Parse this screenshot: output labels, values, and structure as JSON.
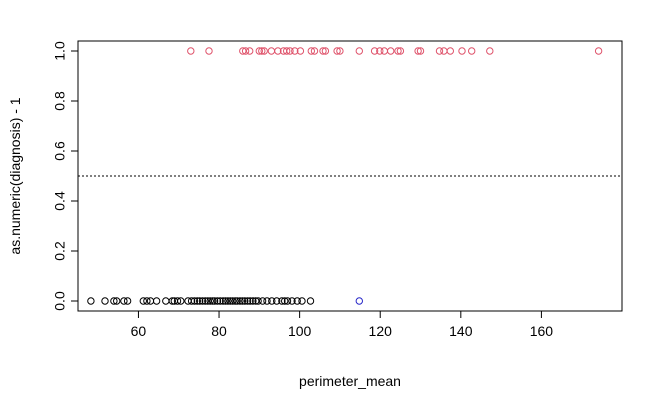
{
  "chart_data": {
    "type": "scatter",
    "xlabel": "perimeter_mean",
    "ylabel": "as.numeric(diagnosis) - 1",
    "xlim": [
      45,
      180
    ],
    "ylim": [
      -0.04,
      1.04
    ],
    "xticks": [
      60,
      80,
      100,
      120,
      140,
      160
    ],
    "yticks": [
      0.0,
      0.2,
      0.4,
      0.6,
      0.8,
      1.0
    ],
    "ytick_labels": [
      "0.0",
      "0.2",
      "0.4",
      "0.6",
      "0.8",
      "1.0"
    ],
    "reference_line": {
      "y": 0.5,
      "style": "dotted"
    },
    "grid": false,
    "legend": "none",
    "series": [
      {
        "y": 0,
        "color": "#000000",
        "x": [
          48.2,
          51.7,
          53.9,
          54.6,
          56.4,
          57.3,
          61.2,
          62.1,
          63.0,
          64.5,
          66.8,
          68.4,
          68.9,
          69.7,
          70.5,
          72.3,
          73.2,
          73.9,
          74.6,
          75.2,
          75.9,
          76.6,
          77.2,
          77.8,
          78.4,
          78.9,
          79.6,
          80.3,
          81.0,
          81.6,
          82.2,
          82.8,
          83.4,
          84.0,
          84.5,
          85.2,
          85.8,
          86.4,
          87.1,
          87.7,
          88.4,
          89.1,
          89.7,
          90.8,
          91.9,
          93.1,
          94.3,
          95.6,
          96.3,
          97.0,
          98.1,
          99.4,
          100.6,
          102.7
        ]
      },
      {
        "y": 0,
        "color": "#2828c8",
        "x": [
          114.8
        ]
      },
      {
        "y": 1,
        "color": "#df536b",
        "x": [
          73.0,
          77.5,
          85.9,
          86.6,
          87.6,
          90.0,
          90.6,
          91.2,
          93.0,
          94.6,
          96.0,
          96.8,
          97.6,
          98.8,
          100.2,
          102.9,
          103.7,
          105.8,
          106.4,
          109.3,
          110.0,
          114.8,
          118.6,
          119.9,
          121.0,
          122.6,
          124.4,
          125.0,
          129.4,
          130.0,
          134.7,
          135.8,
          137.4,
          140.3,
          142.7,
          147.2,
          174.2
        ]
      }
    ]
  }
}
